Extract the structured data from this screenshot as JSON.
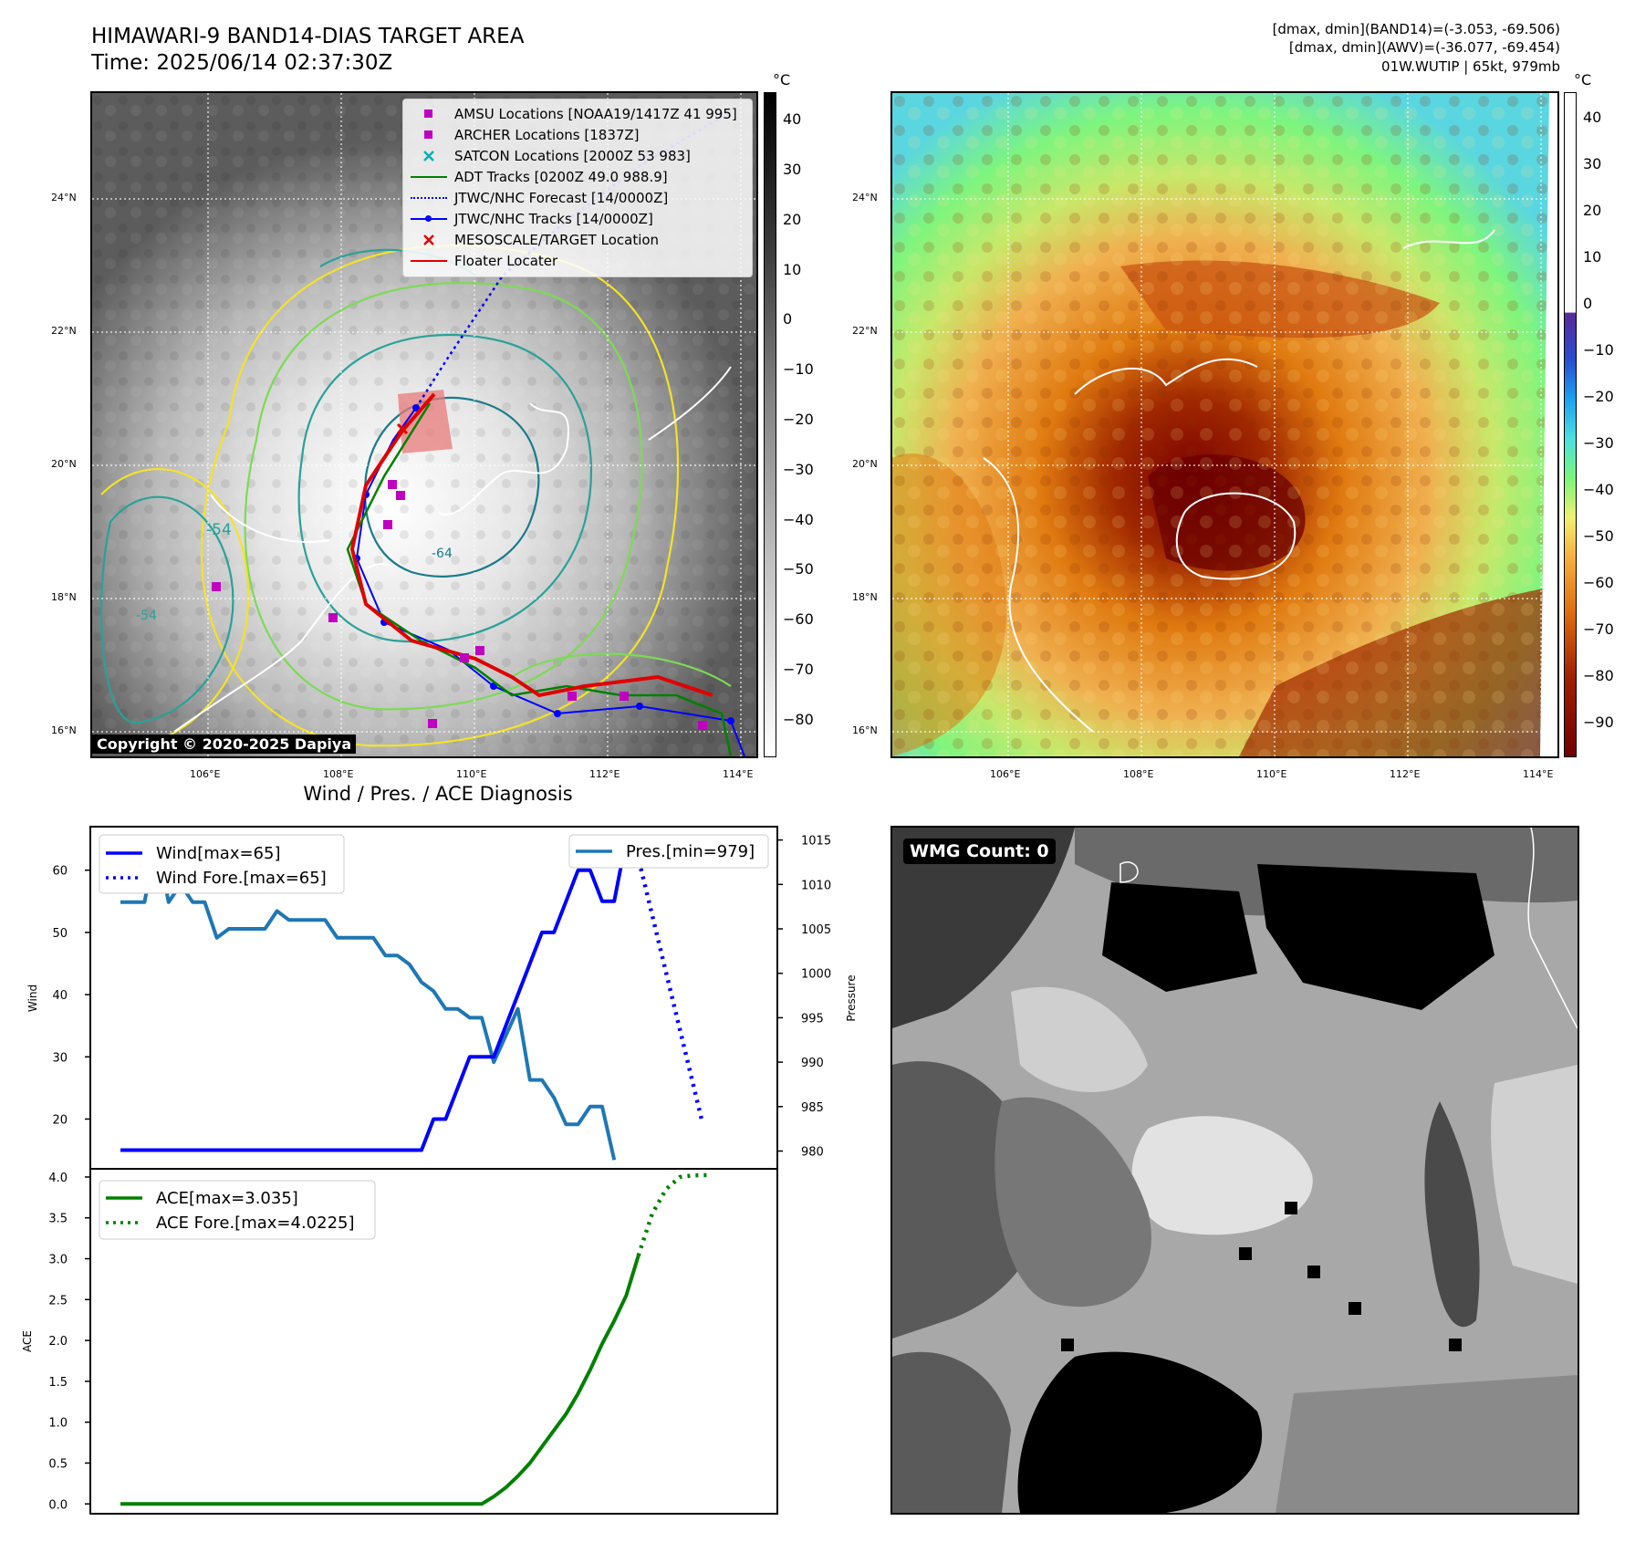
{
  "header": {
    "title_line1": "HIMAWARI-9 BAND14-DIAS TARGET AREA",
    "title_line2": "Time: 2025/06/14 02:37:30Z",
    "stats_line1": "[dmax, dmin](BAND14)=(-3.053, -69.506)",
    "stats_line2": "[dmax, dmin](AWV)=(-36.077, -69.454)",
    "stats_line3": "01W.WUTIP | 65kt, 979mb"
  },
  "map": {
    "lat_labels": [
      "24°N",
      "22°N",
      "20°N",
      "18°N",
      "16°N"
    ],
    "lon_labels": [
      "106°E",
      "108°E",
      "110°E",
      "112°E",
      "114°E"
    ],
    "copyright": "Copyright © 2020-2025 Dapiya",
    "contour_labels": [
      "-64",
      "-54",
      "-54"
    ]
  },
  "ir_colorbar": {
    "unit": "°C",
    "ticks": [
      "40",
      "30",
      "20",
      "10",
      "0",
      "−10",
      "−20",
      "−30",
      "−40",
      "−50",
      "−60",
      "−70",
      "−80"
    ]
  },
  "color_colorbar": {
    "unit": "°C",
    "ticks": [
      "40",
      "30",
      "20",
      "10",
      "0",
      "−10",
      "−20",
      "−30",
      "−40",
      "−50",
      "−60",
      "−70",
      "−80",
      "−90"
    ]
  },
  "legend": {
    "items": [
      {
        "label": "AMSU Locations [NOAA19/1417Z 41 995]",
        "symbol": "square",
        "color": "#c000c0"
      },
      {
        "label": "ARCHER Locations [1837Z]",
        "symbol": "square",
        "color": "#c000c0"
      },
      {
        "label": "SATCON Locations [2000Z 53 983]",
        "symbol": "x",
        "color": "#00b0b0"
      },
      {
        "label": "ADT Tracks [0200Z 49.0 988.9]",
        "symbol": "line",
        "color": "#008000"
      },
      {
        "label": "JTWC/NHC Forecast [14/0000Z]",
        "symbol": "dotted",
        "color": "#0000ff"
      },
      {
        "label": "JTWC/NHC Tracks [14/0000Z]",
        "symbol": "line-dot",
        "color": "#0000ff"
      },
      {
        "label": "MESOSCALE/TARGET Location",
        "symbol": "x",
        "color": "#e00000"
      },
      {
        "label": "Floater Locater",
        "symbol": "line",
        "color": "#e00000"
      }
    ]
  },
  "wmg": {
    "badge": "WMG Count: 0"
  },
  "chart_data": [
    {
      "type": "line",
      "title": "Wind / Pres. / ACE Diagnosis",
      "ylabel": "Wind",
      "y2label": "Pressure",
      "ylim": [
        12,
        67
      ],
      "y2lim": [
        978,
        1016.5
      ],
      "y_ticks": [
        20,
        30,
        40,
        50,
        60
      ],
      "y2_ticks": [
        980,
        985,
        990,
        995,
        1000,
        1005,
        1010,
        1015
      ],
      "series": [
        {
          "name": "Wind[max=65]",
          "color": "#0000ff",
          "style": "solid",
          "axis": "left",
          "values": [
            15,
            15,
            15,
            15,
            15,
            15,
            15,
            15,
            15,
            15,
            15,
            15,
            15,
            15,
            15,
            15,
            15,
            15,
            15,
            15,
            15,
            15,
            15,
            15,
            15,
            15,
            20,
            20,
            25,
            30,
            30,
            30,
            35,
            40,
            45,
            50,
            50,
            55,
            60,
            60,
            55,
            55,
            65
          ]
        },
        {
          "name": "Wind Fore.[max=65]",
          "color": "#0000ff",
          "style": "dotted",
          "axis": "left",
          "values": [
            65,
            60,
            50,
            40,
            30,
            20
          ],
          "offset": 42,
          "step": 1.25
        },
        {
          "name": "Pres.[min=979]",
          "color": "#1f77b4",
          "style": "solid",
          "axis": "right",
          "values": [
            1008,
            1008,
            1008,
            1015,
            1008,
            1010,
            1008,
            1008,
            1004,
            1005,
            1005,
            1005,
            1005,
            1007,
            1006,
            1006,
            1006,
            1006,
            1004,
            1004,
            1004,
            1004,
            1002,
            1002,
            1001,
            999,
            998,
            996,
            996,
            995,
            995,
            990,
            993,
            996,
            988,
            988,
            986,
            983,
            983,
            985,
            985,
            979
          ]
        }
      ]
    },
    {
      "type": "line",
      "ylabel": "ACE",
      "ylim": [
        -0.12,
        4.1
      ],
      "y_ticks": [
        0.0,
        0.5,
        1.0,
        1.5,
        2.0,
        2.5,
        3.0,
        3.5,
        4.0
      ],
      "series": [
        {
          "name": "ACE[max=3.035]",
          "color": "#008000",
          "style": "solid",
          "values": [
            0,
            0,
            0,
            0,
            0,
            0,
            0,
            0,
            0,
            0,
            0,
            0,
            0,
            0,
            0,
            0,
            0,
            0,
            0,
            0,
            0,
            0,
            0,
            0,
            0,
            0,
            0,
            0,
            0,
            0,
            0,
            0.09,
            0.2,
            0.34,
            0.5,
            0.7,
            0.9,
            1.1,
            1.35,
            1.64,
            1.96,
            2.24,
            2.55,
            3.035
          ]
        },
        {
          "name": "ACE Fore.[max=4.0225]",
          "color": "#008000",
          "style": "dotted",
          "values": [
            3.035,
            3.55,
            3.85,
            4.0,
            4.02,
            4.0225
          ],
          "offset": 43,
          "step": 1.15
        }
      ]
    }
  ]
}
